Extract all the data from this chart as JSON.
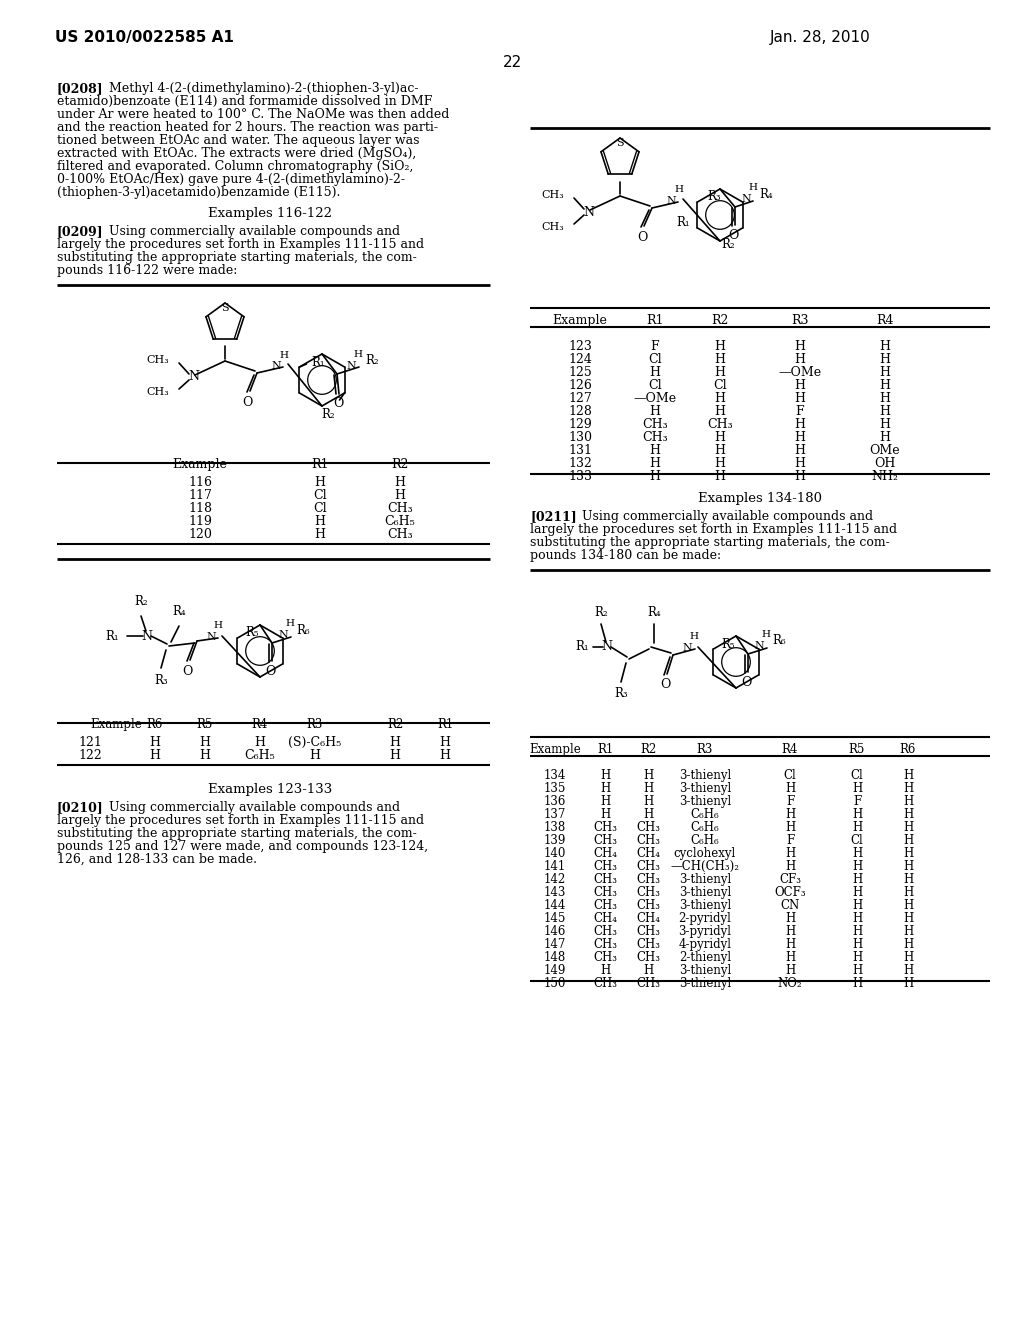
{
  "patent_number": "US 2010/0022585 A1",
  "date": "Jan. 28, 2010",
  "page_number": "22",
  "bg_color": "#ffffff",
  "para_0208_lines": [
    "[0208]   Methyl 4-(2-(dimethylamino)-2-(thiophen-3-yl)ac-",
    "etamido)benzoate (E114) and formamide dissolved in DMF",
    "under Ar were heated to 100° C. The NaOMe was then added",
    "and the reaction heated for 2 hours. The reaction was parti-",
    "tioned between EtOAc and water. The aqueous layer was",
    "extracted with EtOAc. The extracts were dried (MgSO₄),",
    "filtered and evaporated. Column chromatography (SiO₂,",
    "0-100% EtOAc/Hex) gave pure 4-(2-(dimethylamino)-2-",
    "(thiophen-3-yl)acetamido)benzamide (E115)."
  ],
  "heading1": "Examples 116-122",
  "para_0209_lines": [
    "[0209]   Using commercially available compounds and",
    "largely the procedures set forth in Examples 111-115 and",
    "substituting the appropriate starting materials, the com-",
    "pounds 116-122 were made:"
  ],
  "table1_header": [
    "Example",
    "R1",
    "R2"
  ],
  "table1_rows": [
    [
      "116",
      "H",
      "H"
    ],
    [
      "117",
      "Cl",
      "H"
    ],
    [
      "118",
      "Cl",
      "CH₃"
    ],
    [
      "119",
      "H",
      "C₆H₅"
    ],
    [
      "120",
      "H",
      "CH₃"
    ]
  ],
  "table2_header": [
    "Example",
    "R6",
    "R5",
    "R4",
    "R3",
    "R2",
    "R1"
  ],
  "table2_rows": [
    [
      "121",
      "H",
      "H",
      "H",
      "(S)-C₆H₅",
      "H",
      "H"
    ],
    [
      "122",
      "H",
      "H",
      "C₆H₅",
      "H",
      "H",
      "H"
    ]
  ],
  "heading2": "Examples 123-133",
  "para_0210_lines": [
    "[0210]   Using commercially available compounds and",
    "largely the procedures set forth in Examples 111-115 and",
    "substituting the appropriate starting materials, the com-",
    "pounds 125 and 127 were made, and compounds 123-124,",
    "126, and 128-133 can be made."
  ],
  "heading3": "Examples 134-180",
  "para_0211_lines": [
    "[0211]   Using commercially available compounds and",
    "largely the procedures set forth in Examples 111-115 and",
    "substituting the appropriate starting materials, the com-",
    "pounds 134-180 can be made:"
  ],
  "table3_header": [
    "Example",
    "R1",
    "R2",
    "R3",
    "R4"
  ],
  "table3_rows": [
    [
      "123",
      "F",
      "H",
      "H",
      "H"
    ],
    [
      "124",
      "Cl",
      "H",
      "H",
      "H"
    ],
    [
      "125",
      "H",
      "H",
      "—OMe",
      "H"
    ],
    [
      "126",
      "Cl",
      "Cl",
      "H",
      "H"
    ],
    [
      "127",
      "—OMe",
      "H",
      "H",
      "H"
    ],
    [
      "128",
      "H",
      "H",
      "F",
      "H"
    ],
    [
      "129",
      "CH₃",
      "CH₃",
      "H",
      "H"
    ],
    [
      "130",
      "CH₃",
      "H",
      "H",
      "H"
    ],
    [
      "131",
      "H",
      "H",
      "H",
      "OMe"
    ],
    [
      "132",
      "H",
      "H",
      "H",
      "OH"
    ],
    [
      "133",
      "H",
      "H",
      "H",
      "NH₂"
    ]
  ],
  "table4_header": [
    "Example",
    "R1",
    "R2",
    "R3",
    "R4",
    "R5",
    "R6"
  ],
  "table4_rows": [
    [
      "134",
      "H",
      "H",
      "3-thienyl",
      "Cl",
      "Cl",
      "H"
    ],
    [
      "135",
      "H",
      "H",
      "3-thienyl",
      "H",
      "H",
      "H"
    ],
    [
      "136",
      "H",
      "H",
      "3-thienyl",
      "F",
      "F",
      "H"
    ],
    [
      "137",
      "H",
      "H",
      "C₆H₆",
      "H",
      "H",
      "H"
    ],
    [
      "138",
      "CH₃",
      "CH₃",
      "C₆H₆",
      "H",
      "H",
      "H"
    ],
    [
      "139",
      "CH₃",
      "CH₃",
      "C₆H₆",
      "F",
      "Cl",
      "H"
    ],
    [
      "140",
      "CH₄",
      "CH₄",
      "cyclohexyl",
      "H",
      "H",
      "H"
    ],
    [
      "141",
      "CH₃",
      "CH₃",
      "—CH(CH₃)₂",
      "H",
      "H",
      "H"
    ],
    [
      "142",
      "CH₃",
      "CH₃",
      "3-thienyl",
      "CF₃",
      "H",
      "H"
    ],
    [
      "143",
      "CH₃",
      "CH₃",
      "3-thienyl",
      "OCF₃",
      "H",
      "H"
    ],
    [
      "144",
      "CH₃",
      "CH₃",
      "3-thienyl",
      "CN",
      "H",
      "H"
    ],
    [
      "145",
      "CH₄",
      "CH₄",
      "2-pyridyl",
      "H",
      "H",
      "H"
    ],
    [
      "146",
      "CH₃",
      "CH₃",
      "3-pyridyl",
      "H",
      "H",
      "H"
    ],
    [
      "147",
      "CH₃",
      "CH₃",
      "4-pyridyl",
      "H",
      "H",
      "H"
    ],
    [
      "148",
      "CH₃",
      "CH₃",
      "2-thienyl",
      "H",
      "H",
      "H"
    ],
    [
      "149",
      "H",
      "H",
      "3-thienyl",
      "H",
      "H",
      "H"
    ],
    [
      "150",
      "CH₃",
      "CH₃",
      "3-thienyl",
      "NO₂",
      "H",
      "H"
    ]
  ]
}
